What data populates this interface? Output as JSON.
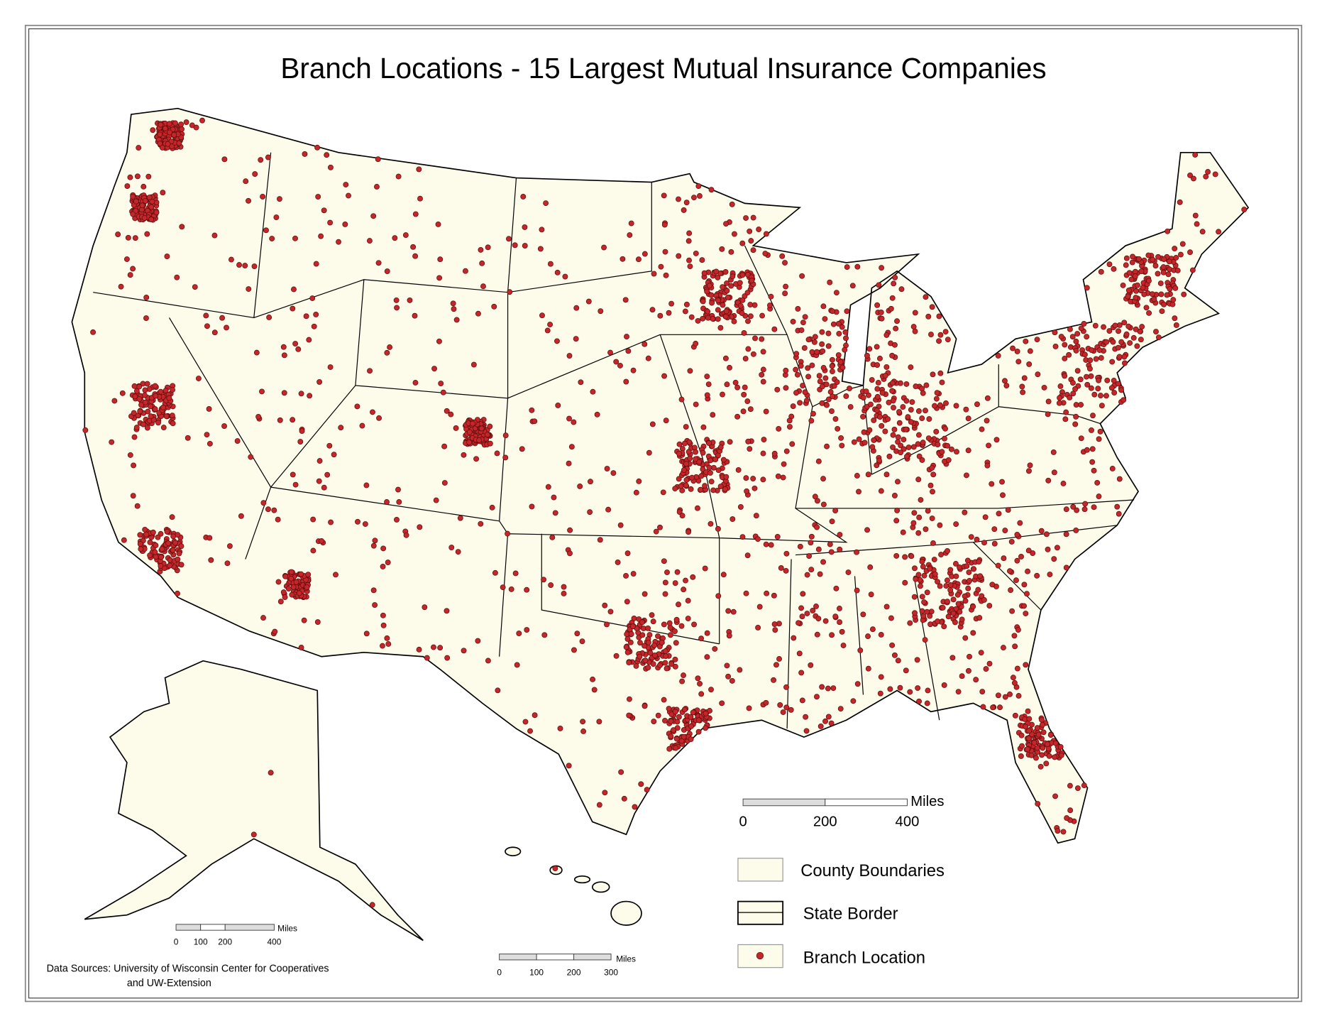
{
  "title": "Branch Locations - 15 Largest Mutual Insurance Companies",
  "legend": {
    "items": [
      "County Boundaries",
      "State Border",
      "Branch Location"
    ]
  },
  "scale_bars": [
    {
      "unit": "Miles",
      "labels": [
        0,
        200,
        400
      ]
    },
    {
      "unit": "Miles",
      "labels": [
        0,
        100,
        200,
        400
      ]
    },
    {
      "unit": "Miles",
      "labels": [
        0,
        100,
        200,
        300
      ]
    }
  ],
  "data_sources": [
    "Data Sources: University of Wisconsin Center for Cooperatives",
    "and UW-Extension"
  ]
}
